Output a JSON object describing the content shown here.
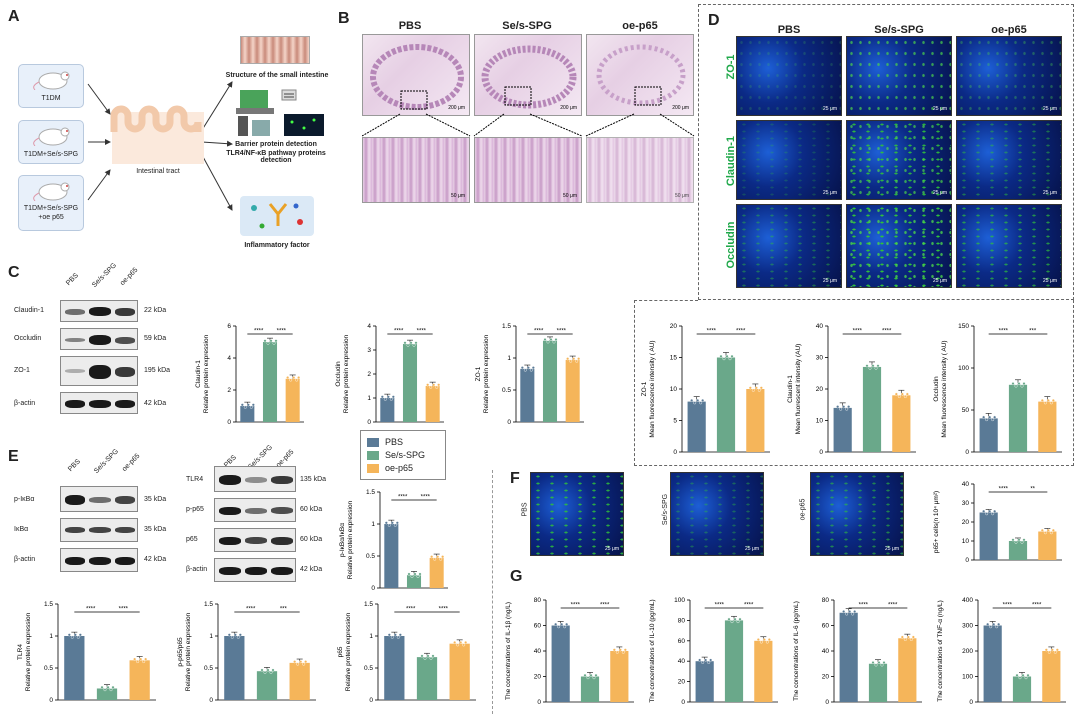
{
  "panels": {
    "A": "A",
    "B": "B",
    "C": "C",
    "D": "D",
    "E": "E",
    "F": "F",
    "G": "G"
  },
  "panelA": {
    "groups": [
      "T1DM",
      "T1DM+Se/s-SPG",
      "T1DM+Se/s-SPG\n+oe p65"
    ],
    "intestine": "Intestinal tract",
    "outputs": [
      "Structure of the small intestine",
      "Barrier protein detection",
      "TLR4/NF-κB pathway proteins detection",
      "Inflammatory factor"
    ]
  },
  "groups": [
    "PBS",
    "Se/s-SPG",
    "oe-p65"
  ],
  "scalebars": {
    "s200": "200 μm",
    "s50": "50 μm",
    "s25": "25 μm"
  },
  "panelC": {
    "rows": [
      "Claudin-1",
      "Occludin",
      "ZO-1",
      "β-actin"
    ],
    "kda": [
      "22 kDa",
      "59 kDa",
      "195 kDa",
      "42 kDa"
    ]
  },
  "panelD": {
    "rows": [
      "ZO-1",
      "Claudin-1",
      "Occludin"
    ]
  },
  "panelE": {
    "left_rows": [
      "p-IκBα",
      "IκBα",
      "β-actin"
    ],
    "left_kda": [
      "35 kDa",
      "35 kDa",
      "42 kDa"
    ],
    "mid_rows": [
      "TLR4",
      "p-p65",
      "p65",
      "β-actin"
    ],
    "mid_kda": [
      "135 kDa",
      "60 kDa",
      "60 kDa",
      "42 kDa"
    ]
  },
  "legend": [
    {
      "name": "PBS",
      "color": "#5a7a96"
    },
    {
      "name": "Se/s-SPG",
      "color": "#6aa88a"
    },
    {
      "name": "oe-p65",
      "color": "#f5b55a"
    }
  ],
  "chart_data": [
    {
      "id": "C1",
      "type": "bar",
      "ylabel": "Claudin-1\nRelative protein expression",
      "ylim": [
        0,
        6
      ],
      "ticks": [
        0,
        2,
        4,
        6
      ],
      "values": [
        1.0,
        5.0,
        2.7
      ],
      "sig": [
        "****",
        "****"
      ]
    },
    {
      "id": "C2",
      "type": "bar",
      "ylabel": "Occludin\nRelative protein expression",
      "ylim": [
        0,
        4
      ],
      "ticks": [
        0,
        1,
        2,
        3,
        4
      ],
      "values": [
        1.0,
        3.25,
        1.5
      ],
      "sig": [
        "****",
        "****"
      ]
    },
    {
      "id": "C3",
      "type": "bar",
      "ylabel": "ZO-1\nRelative protein expression",
      "ylim": [
        0,
        1.5
      ],
      "ticks": [
        0.0,
        0.5,
        1.0,
        1.5
      ],
      "values": [
        0.83,
        1.27,
        0.97
      ],
      "sig": [
        "****",
        "****"
      ]
    },
    {
      "id": "D1",
      "type": "bar",
      "ylabel": "ZO-1\nMean fluorescence intensity ( AU)",
      "ylim": [
        0,
        20
      ],
      "ticks": [
        0,
        5,
        10,
        15,
        20
      ],
      "values": [
        8,
        15,
        10
      ],
      "sig": [
        "****",
        "****"
      ]
    },
    {
      "id": "D2",
      "type": "bar",
      "ylabel": "Claudin-1\nMean fluorescent intensity (AU)",
      "ylim": [
        0,
        40
      ],
      "ticks": [
        0,
        10,
        20,
        30,
        40
      ],
      "values": [
        14,
        27,
        18
      ],
      "sig": [
        "****",
        "****"
      ]
    },
    {
      "id": "D3",
      "type": "bar",
      "ylabel": "Occludin\nMean fluorescence intensity ( AU)",
      "ylim": [
        0,
        150
      ],
      "ticks": [
        0,
        50,
        100,
        150
      ],
      "values": [
        40,
        80,
        60
      ],
      "sig": [
        "****",
        "***"
      ]
    },
    {
      "id": "E1",
      "type": "bar",
      "ylabel": "p-IκBα/IκBα\nRelative protein expression",
      "ylim": [
        0,
        1.5
      ],
      "ticks": [
        0.0,
        0.5,
        1.0,
        1.5
      ],
      "values": [
        1.0,
        0.2,
        0.47
      ],
      "sig": [
        "****",
        "****"
      ]
    },
    {
      "id": "E2",
      "type": "bar",
      "ylabel": "TLR4\nRelative protein expression",
      "ylim": [
        0,
        1.5
      ],
      "ticks": [
        0.0,
        0.5,
        1.0,
        1.5
      ],
      "values": [
        1.0,
        0.18,
        0.62
      ],
      "sig": [
        "****",
        "****"
      ]
    },
    {
      "id": "E3",
      "type": "bar",
      "ylabel": "p-p65/p65\nRelative protein expression",
      "ylim": [
        0,
        1.5
      ],
      "ticks": [
        0.0,
        0.5,
        1.0,
        1.5
      ],
      "values": [
        1.0,
        0.45,
        0.58
      ],
      "sig": [
        "****",
        "***"
      ]
    },
    {
      "id": "E4",
      "type": "bar",
      "ylabel": "p65\nRelative protein expression",
      "ylim": [
        0,
        1.5
      ],
      "ticks": [
        0.0,
        0.5,
        1.0,
        1.5
      ],
      "values": [
        1.0,
        0.67,
        0.88
      ],
      "sig": [
        "****",
        "****"
      ]
    },
    {
      "id": "F1",
      "type": "bar",
      "ylabel": "p65+ cells(n 10⁴ μm²)",
      "ylim": [
        0,
        40
      ],
      "ticks": [
        0,
        10,
        20,
        30,
        40
      ],
      "values": [
        25,
        10,
        15
      ],
      "sig": [
        "****",
        "**"
      ]
    },
    {
      "id": "G1",
      "type": "bar",
      "ylabel": "The concentrations of IL-1β (ng/L)",
      "ylim": [
        0,
        80
      ],
      "ticks": [
        0,
        20,
        40,
        60,
        80
      ],
      "values": [
        60,
        20,
        40
      ],
      "sig": [
        "****",
        "****"
      ]
    },
    {
      "id": "G2",
      "type": "bar",
      "ylabel": "The concentrations of IL-10 (pg/mL)",
      "ylim": [
        0,
        100
      ],
      "ticks": [
        0,
        20,
        40,
        60,
        80,
        100
      ],
      "values": [
        40,
        80,
        60
      ],
      "sig": [
        "****",
        "****"
      ]
    },
    {
      "id": "G3",
      "type": "bar",
      "ylabel": "The concentrations of IL-6 (pg/mL)",
      "ylim": [
        0,
        80
      ],
      "ticks": [
        0,
        20,
        40,
        60,
        80
      ],
      "values": [
        70,
        30,
        50
      ],
      "sig": [
        "****",
        "****"
      ]
    },
    {
      "id": "G4",
      "type": "bar",
      "ylabel": "The concentrations of TNF-α (ng/L)",
      "ylim": [
        0,
        400
      ],
      "ticks": [
        0,
        100,
        200,
        300,
        400
      ],
      "values": [
        300,
        100,
        200
      ],
      "sig": [
        "****",
        "****"
      ]
    }
  ]
}
